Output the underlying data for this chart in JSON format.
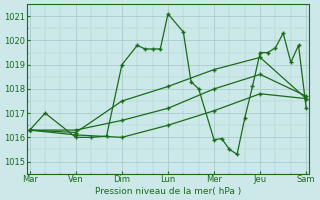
{
  "bg_color": "#cce8e8",
  "grid_color": "#aacccc",
  "line_color": "#1a6b1a",
  "x_tick_labels": [
    "Mar",
    "Ven",
    "Dim",
    "Lun",
    "Mer",
    "Jeu",
    "Sam"
  ],
  "x_ticks_pos": [
    0,
    3,
    6,
    9,
    12,
    15,
    18
  ],
  "xlim": [
    -0.2,
    18.2
  ],
  "ylim": [
    1014.5,
    1021.5
  ],
  "yticks": [
    1015,
    1016,
    1017,
    1018,
    1019,
    1020,
    1021
  ],
  "xlabel": "Pression niveau de la mer( hPa )",
  "series1": [
    [
      0,
      1016.3
    ],
    [
      1,
      1017.0
    ],
    [
      3,
      1016.0
    ],
    [
      4,
      1016.0
    ],
    [
      5,
      1016.05
    ],
    [
      6,
      1019.0
    ],
    [
      7,
      1019.8
    ],
    [
      7.5,
      1019.65
    ],
    [
      8,
      1019.65
    ],
    [
      8.5,
      1019.65
    ],
    [
      9,
      1021.1
    ],
    [
      10,
      1020.35
    ],
    [
      10.5,
      1018.3
    ],
    [
      11,
      1018.0
    ],
    [
      12,
      1015.9
    ],
    [
      12.5,
      1015.95
    ],
    [
      13,
      1015.5
    ],
    [
      13.5,
      1015.3
    ],
    [
      14,
      1016.8
    ],
    [
      14.5,
      1018.1
    ],
    [
      15,
      1019.5
    ],
    [
      15.5,
      1019.5
    ],
    [
      16,
      1019.7
    ],
    [
      16.5,
      1020.3
    ],
    [
      17,
      1019.1
    ],
    [
      17.5,
      1019.8
    ],
    [
      18,
      1017.2
    ]
  ],
  "series2": [
    [
      0,
      1016.3
    ],
    [
      3,
      1016.2
    ],
    [
      6,
      1017.5
    ],
    [
      9,
      1018.1
    ],
    [
      12,
      1018.8
    ],
    [
      15,
      1019.3
    ],
    [
      18,
      1017.6
    ]
  ],
  "series3": [
    [
      0,
      1016.3
    ],
    [
      3,
      1016.3
    ],
    [
      6,
      1016.7
    ],
    [
      9,
      1017.2
    ],
    [
      12,
      1018.0
    ],
    [
      15,
      1018.6
    ],
    [
      18,
      1017.7
    ]
  ],
  "series4": [
    [
      0,
      1016.3
    ],
    [
      3,
      1016.1
    ],
    [
      6,
      1016.0
    ],
    [
      9,
      1016.5
    ],
    [
      12,
      1017.1
    ],
    [
      15,
      1017.8
    ],
    [
      18,
      1017.6
    ]
  ]
}
